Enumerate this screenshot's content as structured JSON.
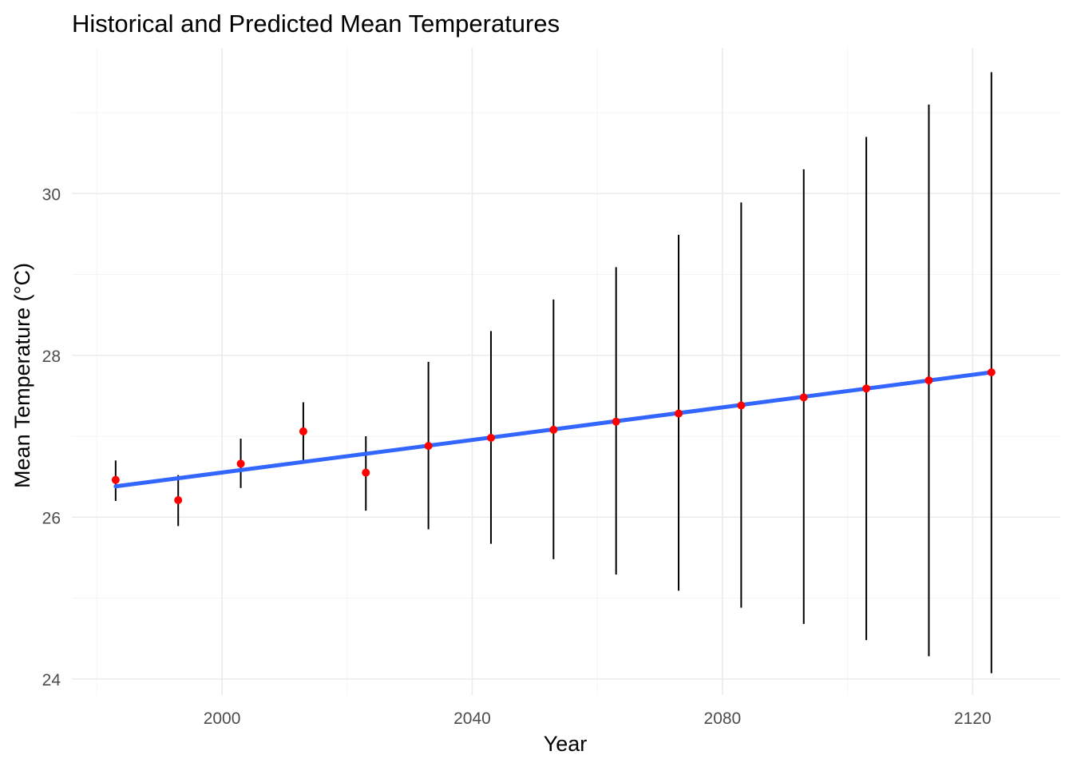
{
  "chart_data": {
    "type": "scatter",
    "title": "Historical and Predicted Mean Temperatures",
    "xlabel": "Year",
    "ylabel": "Mean Temperature (°C)",
    "xlim": [
      1976,
      2134
    ],
    "ylim": [
      23.8,
      31.8
    ],
    "x_ticks": [
      2000,
      2040,
      2080,
      2120
    ],
    "y_ticks": [
      24,
      26,
      28,
      30
    ],
    "x_minor_ticks": [
      1980,
      2020,
      2060,
      2100
    ],
    "y_minor_ticks": [
      25,
      27,
      29,
      31
    ],
    "grid": true,
    "trend_line": {
      "color": "#3366ff",
      "start": [
        1983,
        26.38
      ],
      "end": [
        2123,
        27.79
      ]
    },
    "point_color": "#ff0000",
    "errorbar_color": "#000000",
    "points": [
      {
        "x": 1983,
        "y": 26.46,
        "ymin": 26.2,
        "ymax": 26.7
      },
      {
        "x": 1993,
        "y": 26.21,
        "ymin": 25.89,
        "ymax": 26.52
      },
      {
        "x": 2003,
        "y": 26.66,
        "ymin": 26.36,
        "ymax": 26.97
      },
      {
        "x": 2013,
        "y": 27.06,
        "ymin": 26.69,
        "ymax": 27.42
      },
      {
        "x": 2023,
        "y": 26.55,
        "ymin": 26.08,
        "ymax": 27.0
      },
      {
        "x": 2033,
        "y": 26.88,
        "ymin": 25.85,
        "ymax": 27.92
      },
      {
        "x": 2043,
        "y": 26.98,
        "ymin": 25.67,
        "ymax": 28.3
      },
      {
        "x": 2053,
        "y": 27.08,
        "ymin": 25.48,
        "ymax": 28.69
      },
      {
        "x": 2063,
        "y": 27.18,
        "ymin": 25.29,
        "ymax": 29.09
      },
      {
        "x": 2073,
        "y": 27.28,
        "ymin": 25.09,
        "ymax": 29.49
      },
      {
        "x": 2083,
        "y": 27.38,
        "ymin": 24.88,
        "ymax": 29.89
      },
      {
        "x": 2093,
        "y": 27.48,
        "ymin": 24.68,
        "ymax": 30.3
      },
      {
        "x": 2103,
        "y": 27.59,
        "ymin": 24.48,
        "ymax": 30.7
      },
      {
        "x": 2113,
        "y": 27.69,
        "ymin": 24.28,
        "ymax": 31.1
      },
      {
        "x": 2123,
        "y": 27.79,
        "ymin": 24.07,
        "ymax": 31.5
      }
    ]
  }
}
